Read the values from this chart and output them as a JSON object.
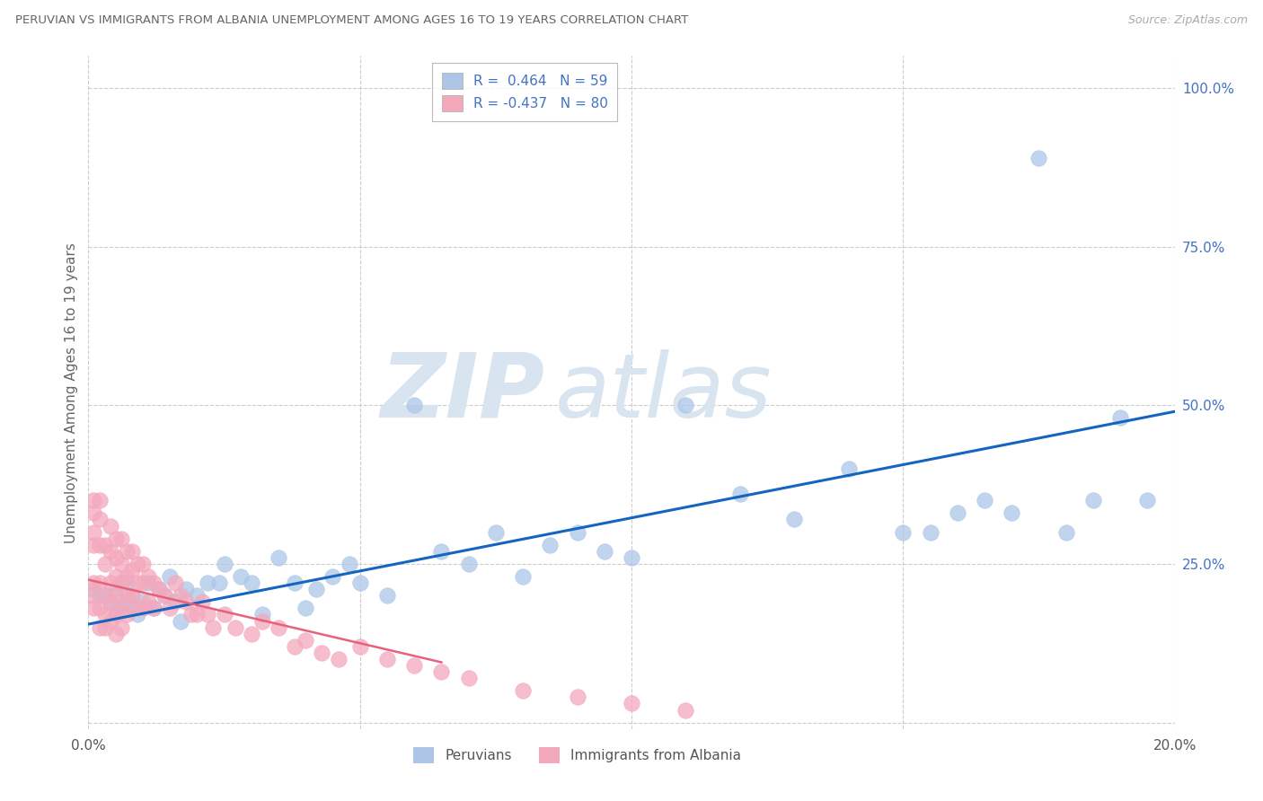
{
  "title": "PERUVIAN VS IMMIGRANTS FROM ALBANIA UNEMPLOYMENT AMONG AGES 16 TO 19 YEARS CORRELATION CHART",
  "source": "Source: ZipAtlas.com",
  "ylabel": "Unemployment Among Ages 16 to 19 years",
  "xlim": [
    0.0,
    0.2
  ],
  "ylim": [
    -0.01,
    1.05
  ],
  "xticks": [
    0.0,
    0.05,
    0.1,
    0.15,
    0.2
  ],
  "xticklabels": [
    "0.0%",
    "",
    "",
    "",
    "20.0%"
  ],
  "yticks_right": [
    0.25,
    0.5,
    0.75,
    1.0
  ],
  "yticklabels_right": [
    "25.0%",
    "50.0%",
    "75.0%",
    "100.0%"
  ],
  "grid_color": "#cccccc",
  "bg_color": "#ffffff",
  "watermark_zip": "ZIP",
  "watermark_atlas": "atlas",
  "blue_color": "#adc6e8",
  "pink_color": "#f4a8bc",
  "blue_line_color": "#1565c0",
  "pink_line_color": "#e8607a",
  "blue_label": "Peruvians",
  "pink_label": "Immigrants from Albania",
  "legend_r1": "R =  0.464",
  "legend_n1": "N = 59",
  "legend_r2": "R = -0.437",
  "legend_n2": "N = 80",
  "blue_x": [
    0.001,
    0.002,
    0.003,
    0.004,
    0.005,
    0.005,
    0.006,
    0.007,
    0.007,
    0.008,
    0.008,
    0.009,
    0.01,
    0.011,
    0.012,
    0.013,
    0.014,
    0.015,
    0.016,
    0.017,
    0.018,
    0.02,
    0.022,
    0.024,
    0.025,
    0.028,
    0.03,
    0.032,
    0.035,
    0.038,
    0.04,
    0.042,
    0.045,
    0.048,
    0.05,
    0.055,
    0.06,
    0.065,
    0.07,
    0.075,
    0.08,
    0.085,
    0.09,
    0.095,
    0.1,
    0.11,
    0.12,
    0.13,
    0.14,
    0.15,
    0.155,
    0.16,
    0.165,
    0.17,
    0.175,
    0.18,
    0.185,
    0.19,
    0.195
  ],
  "blue_y": [
    0.21,
    0.2,
    0.2,
    0.19,
    0.18,
    0.21,
    0.22,
    0.19,
    0.22,
    0.18,
    0.2,
    0.17,
    0.19,
    0.22,
    0.18,
    0.21,
    0.2,
    0.23,
    0.19,
    0.16,
    0.21,
    0.2,
    0.22,
    0.22,
    0.25,
    0.23,
    0.22,
    0.17,
    0.26,
    0.22,
    0.18,
    0.21,
    0.23,
    0.25,
    0.22,
    0.2,
    0.5,
    0.27,
    0.25,
    0.3,
    0.23,
    0.28,
    0.3,
    0.27,
    0.26,
    0.5,
    0.36,
    0.32,
    0.4,
    0.3,
    0.3,
    0.33,
    0.35,
    0.33,
    0.89,
    0.3,
    0.35,
    0.48,
    0.35
  ],
  "pink_x": [
    0.0005,
    0.001,
    0.001,
    0.001,
    0.001,
    0.001,
    0.001,
    0.002,
    0.002,
    0.002,
    0.002,
    0.002,
    0.002,
    0.003,
    0.003,
    0.003,
    0.003,
    0.003,
    0.004,
    0.004,
    0.004,
    0.004,
    0.004,
    0.005,
    0.005,
    0.005,
    0.005,
    0.005,
    0.005,
    0.006,
    0.006,
    0.006,
    0.006,
    0.006,
    0.007,
    0.007,
    0.007,
    0.007,
    0.008,
    0.008,
    0.008,
    0.009,
    0.009,
    0.009,
    0.01,
    0.01,
    0.01,
    0.011,
    0.011,
    0.012,
    0.012,
    0.013,
    0.014,
    0.015,
    0.016,
    0.017,
    0.018,
    0.019,
    0.02,
    0.021,
    0.022,
    0.023,
    0.025,
    0.027,
    0.03,
    0.032,
    0.035,
    0.038,
    0.04,
    0.043,
    0.046,
    0.05,
    0.055,
    0.06,
    0.065,
    0.07,
    0.08,
    0.09,
    0.1,
    0.11
  ],
  "pink_y": [
    0.2,
    0.33,
    0.3,
    0.28,
    0.22,
    0.35,
    0.18,
    0.35,
    0.32,
    0.28,
    0.22,
    0.18,
    0.15,
    0.28,
    0.25,
    0.2,
    0.17,
    0.15,
    0.31,
    0.27,
    0.22,
    0.19,
    0.16,
    0.29,
    0.26,
    0.23,
    0.2,
    0.17,
    0.14,
    0.29,
    0.25,
    0.22,
    0.18,
    0.15,
    0.27,
    0.23,
    0.2,
    0.17,
    0.27,
    0.24,
    0.2,
    0.25,
    0.22,
    0.18,
    0.25,
    0.22,
    0.18,
    0.23,
    0.19,
    0.22,
    0.18,
    0.21,
    0.2,
    0.18,
    0.22,
    0.2,
    0.19,
    0.17,
    0.17,
    0.19,
    0.17,
    0.15,
    0.17,
    0.15,
    0.14,
    0.16,
    0.15,
    0.12,
    0.13,
    0.11,
    0.1,
    0.12,
    0.1,
    0.09,
    0.08,
    0.07,
    0.05,
    0.04,
    0.03,
    0.02
  ],
  "blue_trend_x": [
    0.0,
    0.2
  ],
  "blue_trend_y": [
    0.155,
    0.49
  ],
  "pink_trend_x": [
    0.0,
    0.065
  ],
  "pink_trend_y": [
    0.225,
    0.095
  ]
}
